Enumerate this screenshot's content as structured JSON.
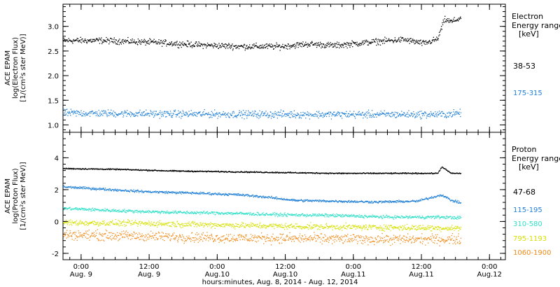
{
  "x_axis": {
    "label": "hours:minutes, Aug.  8, 2014 - Aug. 12, 2014",
    "ticks": [
      {
        "t": 0.333,
        "time": "0:00",
        "date": "Aug. 9"
      },
      {
        "t": 0.833,
        "time": "12:00",
        "date": "Aug. 9"
      },
      {
        "t": 1.333,
        "time": "0:00",
        "date": "Aug.10"
      },
      {
        "t": 1.833,
        "time": "12:00",
        "date": "Aug.10"
      },
      {
        "t": 2.333,
        "time": "0:00",
        "date": "Aug.11"
      },
      {
        "t": 2.833,
        "time": "12:00",
        "date": "Aug.11"
      },
      {
        "t": 3.333,
        "time": "0:00",
        "date": "Aug.12"
      }
    ]
  },
  "panels": {
    "electron": {
      "ylabel": [
        "ACE EPAM",
        "log(Electron Flux)",
        "[1/(cm²s ster MeV)]"
      ],
      "legend_title": [
        "Electron",
        "Energy ranges",
        "[keV]"
      ]
    },
    "proton": {
      "ylabel": [
        "ACE EPAM",
        "log(Proton Flux)",
        "[1/(cm²s ster MeV)]"
      ],
      "legend_title": [
        "Proton",
        "Energy ranges",
        "[keV]"
      ]
    }
  },
  "chart_data": [
    {
      "type": "scatter",
      "panel": "electron",
      "ylim": [
        0.85,
        3.45
      ],
      "xlim": [
        0.2,
        3.45
      ],
      "yticks": [
        1.0,
        1.5,
        2.0,
        2.5,
        3.0
      ],
      "ytick_labels": [
        "1.0",
        "1.5",
        "2.0",
        "2.5",
        "3.0"
      ],
      "series": [
        {
          "name": "38-53",
          "color": "#000000",
          "t": [
            0.2,
            0.5,
            0.9,
            1.2,
            1.5,
            1.8,
            2.0,
            2.2,
            2.35,
            2.5,
            2.7,
            2.85,
            2.95,
            3.0,
            3.05,
            3.12
          ],
          "y": [
            2.72,
            2.72,
            2.68,
            2.63,
            2.6,
            2.6,
            2.65,
            2.62,
            2.66,
            2.7,
            2.74,
            2.66,
            2.75,
            3.15,
            3.1,
            3.18
          ]
        },
        {
          "name": "175-315",
          "color": "#1f7fd6",
          "t": [
            0.2,
            1.0,
            2.0,
            3.0,
            3.12
          ],
          "y": [
            1.25,
            1.23,
            1.22,
            1.22,
            1.25
          ]
        }
      ]
    },
    {
      "type": "scatter",
      "panel": "proton",
      "ylim": [
        -2.4,
        5.6
      ],
      "xlim": [
        0.2,
        3.45
      ],
      "yticks": [
        -2,
        0,
        2,
        4
      ],
      "ytick_labels": [
        "-2",
        "0",
        "2",
        "4"
      ],
      "series": [
        {
          "name": "47-68",
          "color": "#000000",
          "t": [
            0.2,
            0.6,
            1.0,
            1.4,
            1.8,
            2.2,
            2.6,
            2.95,
            2.98,
            3.05,
            3.12
          ],
          "y": [
            3.35,
            3.3,
            3.2,
            3.15,
            3.1,
            3.05,
            3.05,
            3.05,
            3.45,
            3.05,
            3.05
          ]
        },
        {
          "name": "115-195",
          "color": "#1f7fd6",
          "t": [
            0.2,
            0.5,
            0.8,
            1.2,
            1.5,
            1.7,
            1.9,
            2.2,
            2.5,
            2.8,
            2.98,
            3.05,
            3.12
          ],
          "y": [
            2.2,
            2.05,
            1.9,
            1.8,
            1.7,
            1.55,
            1.35,
            1.3,
            1.25,
            1.3,
            1.7,
            1.35,
            1.2
          ]
        },
        {
          "name": "310-580",
          "color": "#2fe0c8",
          "t": [
            0.2,
            0.6,
            1.0,
            1.4,
            1.8,
            2.2,
            2.6,
            3.0,
            3.12
          ],
          "y": [
            0.85,
            0.7,
            0.6,
            0.55,
            0.45,
            0.4,
            0.3,
            0.3,
            0.25
          ]
        },
        {
          "name": "795-1193",
          "color": "#d6e000",
          "t": [
            0.2,
            0.8,
            1.4,
            2.0,
            2.6,
            3.12
          ],
          "y": [
            -0.05,
            -0.1,
            -0.2,
            -0.3,
            -0.35,
            -0.4
          ]
        },
        {
          "name": "1060-1900",
          "color": "#f08c1a",
          "t": [
            0.2,
            0.8,
            1.4,
            2.0,
            2.6,
            3.12
          ],
          "y": [
            -0.8,
            -0.9,
            -1.0,
            -1.05,
            -1.1,
            -1.1
          ]
        }
      ]
    }
  ]
}
